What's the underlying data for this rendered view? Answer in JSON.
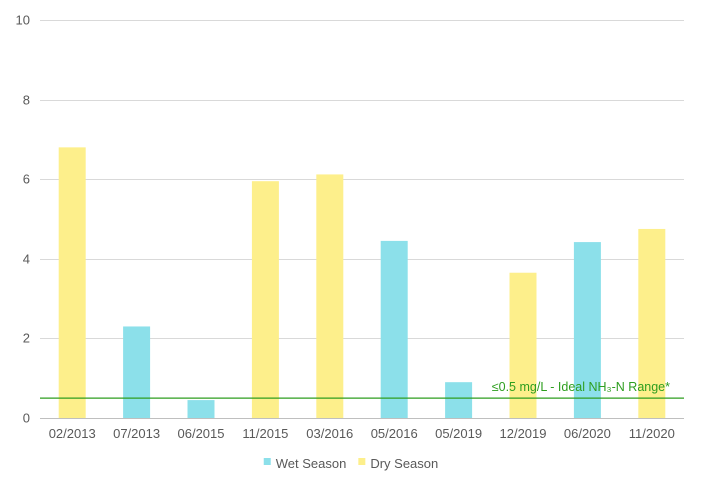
{
  "chart_data": {
    "type": "bar",
    "categories": [
      "02/2013",
      "07/2013",
      "06/2015",
      "11/2015",
      "03/2016",
      "05/2016",
      "05/2019",
      "12/2019",
      "06/2020",
      "11/2020"
    ],
    "values": [
      6.8,
      2.3,
      0.45,
      5.95,
      6.12,
      4.45,
      0.9,
      3.65,
      4.42,
      4.75
    ],
    "season": [
      "Dry Season",
      "Wet Season",
      "Wet Season",
      "Dry Season",
      "Dry Season",
      "Wet Season",
      "Wet Season",
      "Dry Season",
      "Wet Season",
      "Dry Season"
    ],
    "series": [
      {
        "name": "Wet Season",
        "color": "#8ce0ea"
      },
      {
        "name": "Dry Season",
        "color": "#fdef8b"
      }
    ],
    "yticks": [
      "0",
      "2",
      "4",
      "6",
      "8",
      "10"
    ],
    "ylim": [
      0,
      10
    ],
    "grid": true,
    "legend_position": "bottom",
    "reference_line": {
      "value": 0.5,
      "label": "≤0.5 mg/L - Ideal NH₃-N Range*",
      "color": "#2e9e1f"
    }
  }
}
